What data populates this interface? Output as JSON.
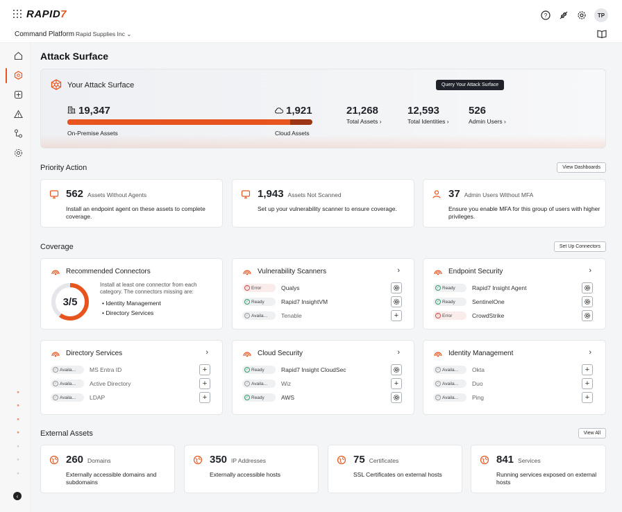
{
  "brand": {
    "logo_text": "RAPID",
    "logo_mark": "7",
    "accent": "#e8541e"
  },
  "topbar": {
    "avatar": "TP",
    "icons": [
      "help-icon",
      "connection-icon",
      "settings-icon"
    ]
  },
  "subbar": {
    "platform": "Command Platform",
    "org": "Rapid Supplies Inc"
  },
  "page": {
    "title": "Attack Surface"
  },
  "hero": {
    "title": "Your Attack Surface",
    "query_button": "Query Your Attack Surface",
    "onprem_value": "19,347",
    "onprem_label": "On-Premise Assets",
    "cloud_value": "1,921",
    "cloud_label": "Cloud Assets",
    "onprem_share": 0.91,
    "stats": [
      {
        "value": "21,268",
        "label": "Total Assets"
      },
      {
        "value": "12,593",
        "label": "Total Identities"
      },
      {
        "value": "526",
        "label": "Admin Users"
      }
    ]
  },
  "priority": {
    "title": "Priority Action",
    "button": "View Dashboards",
    "cards": [
      {
        "value": "562",
        "label": "Assets Without Agents",
        "desc": "Install an endpoint agent on these assets to complete coverage."
      },
      {
        "value": "1,943",
        "label": "Assets Not Scanned",
        "desc": "Set up your vulnerability scanner to ensure coverage."
      },
      {
        "value": "37",
        "label": "Admin Users Without MFA",
        "desc": "Ensure you enable MFA for this group of users with higher privileges."
      }
    ]
  },
  "coverage": {
    "title": "Coverage",
    "button": "Set Up Connectors",
    "recommended": {
      "title": "Recommended Connectors",
      "progress": "3/5",
      "progress_fraction": 0.6,
      "desc": "Install at least one connector from each category. The connectors missing are:",
      "missing": [
        "Identity Management",
        "Directory Services"
      ]
    },
    "vuln": {
      "title": "Vulnerability Scanners",
      "rows": [
        {
          "status": "Error",
          "name": "Qualys"
        },
        {
          "status": "Ready",
          "name": "Rapid7 InsightVM"
        },
        {
          "status": "Availa...",
          "name": "Tenable"
        }
      ]
    },
    "endpoint": {
      "title": "Endpoint Security",
      "rows": [
        {
          "status": "Ready",
          "name": "Rapid7 Insight Agent"
        },
        {
          "status": "Ready",
          "name": "SentinelOne"
        },
        {
          "status": "Error",
          "name": "CrowdStrike"
        }
      ]
    },
    "directory": {
      "title": "Directory Services",
      "rows": [
        {
          "status": "Availa...",
          "name": "MS Entra ID"
        },
        {
          "status": "Availa...",
          "name": "Active Directory"
        },
        {
          "status": "Availa...",
          "name": "LDAP"
        }
      ]
    },
    "cloud": {
      "title": "Cloud Security",
      "rows": [
        {
          "status": "Ready",
          "name": "Rapid7 Insight CloudSec"
        },
        {
          "status": "Availa...",
          "name": "Wiz"
        },
        {
          "status": "Ready",
          "name": "AWS"
        }
      ]
    },
    "identity": {
      "title": "Identity Management",
      "rows": [
        {
          "status": "Availa...",
          "name": "Okta"
        },
        {
          "status": "Availa...",
          "name": "Duo"
        },
        {
          "status": "Availa...",
          "name": "Ping"
        }
      ]
    }
  },
  "external": {
    "title": "External Assets",
    "button": "View All",
    "cards": [
      {
        "value": "260",
        "label": "Domains",
        "desc": "Externally accessible domains and subdomains"
      },
      {
        "value": "350",
        "label": "IP Addresses",
        "desc": "Externally accessible hosts"
      },
      {
        "value": "75",
        "label": "Certificates",
        "desc": "SSL Certificates on external hosts"
      },
      {
        "value": "841",
        "label": "Services",
        "desc": "Running services exposed on external hosts"
      }
    ]
  }
}
